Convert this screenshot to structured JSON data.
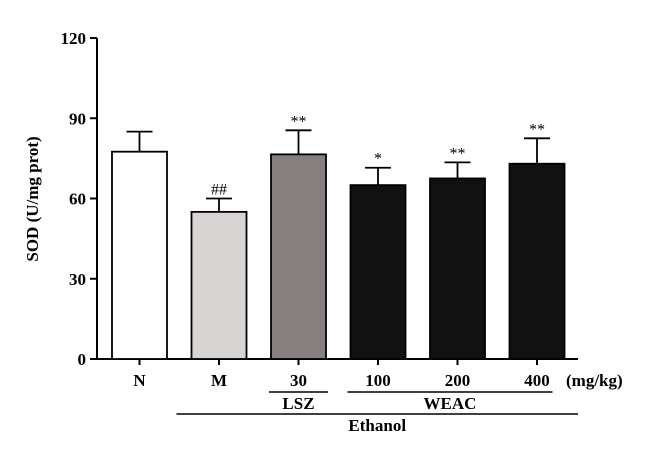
{
  "chart_data": {
    "type": "bar",
    "title": "",
    "ylabel": "SOD (U/mg prot)",
    "ylim": [
      0,
      120
    ],
    "yticks": [
      0,
      30,
      60,
      90,
      120
    ],
    "unit_label": "(mg/kg)",
    "categories": [
      "N",
      "M",
      "30",
      "100",
      "200",
      "400"
    ],
    "values": [
      77.5,
      55.0,
      76.5,
      65.0,
      67.5,
      73.0
    ],
    "errors": [
      7.5,
      5.0,
      9.0,
      6.5,
      6.0,
      9.5
    ],
    "significance": [
      "",
      "##",
      "**",
      "*",
      "**",
      "**"
    ],
    "bar_colors": [
      "#ffffff",
      "#d9d4d4",
      "#867f7f",
      "#111111",
      "#111111",
      "#111111"
    ],
    "groups": [
      {
        "label": "LSZ",
        "from": 2,
        "to": 2
      },
      {
        "label": "WEAC",
        "from": 3,
        "to": 5
      },
      {
        "label": "Ethanol",
        "from": 1,
        "to": 5
      }
    ],
    "grid": false,
    "legend": "none"
  }
}
